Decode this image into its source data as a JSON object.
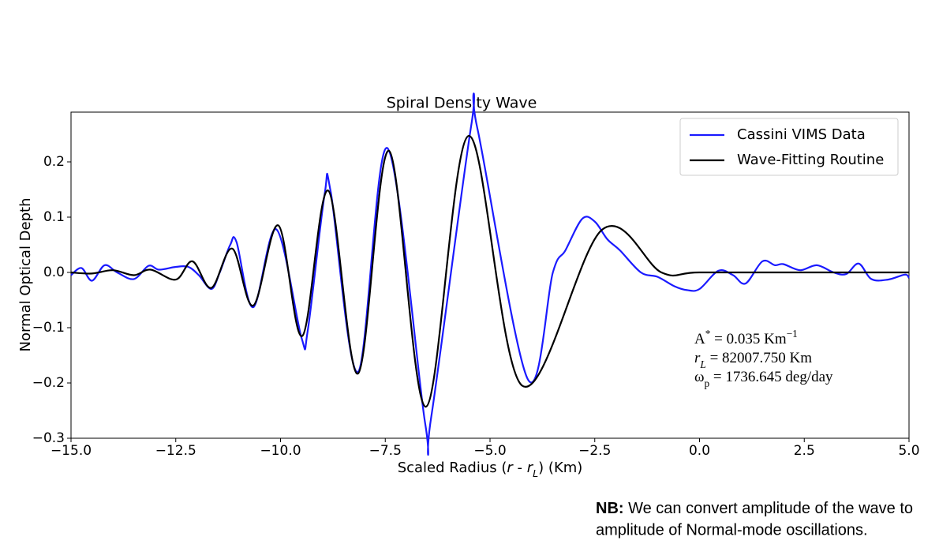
{
  "chart_data": {
    "type": "line",
    "title": "Spiral Density Wave",
    "xlabel": [
      {
        "text": "Scaled Radius ("
      },
      {
        "text": "r",
        "italic": true
      },
      {
        "text": " - "
      },
      {
        "text": "r",
        "italic": true
      },
      {
        "text": "L",
        "italic": true,
        "sub": true
      },
      {
        "text": ") (Km)"
      }
    ],
    "ylabel": "Normal Optical Depth",
    "xlim": [
      -15,
      5
    ],
    "ylim": [
      -0.3,
      0.29
    ],
    "xticks": [
      {
        "value": -15,
        "label": "−15.0"
      },
      {
        "value": -12.5,
        "label": "−12.5"
      },
      {
        "value": -10,
        "label": "−10.0"
      },
      {
        "value": -7.5,
        "label": "−7.5"
      },
      {
        "value": -5,
        "label": "−5.0"
      },
      {
        "value": -2.5,
        "label": "−2.5"
      },
      {
        "value": 0,
        "label": "0.0"
      },
      {
        "value": 2.5,
        "label": "2.5"
      },
      {
        "value": 5,
        "label": "5.0"
      }
    ],
    "yticks": [
      {
        "value": -0.3,
        "label": "−0.3"
      },
      {
        "value": -0.2,
        "label": "−0.2"
      },
      {
        "value": -0.1,
        "label": "−0.1"
      },
      {
        "value": 0,
        "label": "0.0"
      },
      {
        "value": 0.1,
        "label": "0.1"
      },
      0.2
    ],
    "grid": false,
    "legend": "upper right",
    "series": [
      {
        "name": "Cassini VIMS Data",
        "color": "#1a1aff",
        "x": [
          -15,
          -14.75,
          -14.5,
          -14.2,
          -13.9,
          -13.5,
          -13.15,
          -12.9,
          -12.5,
          -12.2,
          -11.95,
          -11.65,
          -11.45,
          -11.2,
          -11.05,
          -10.65,
          -10.1,
          -9.5,
          -9.35,
          -8.95,
          -8.8,
          -8.15,
          -7.45,
          -6.55,
          -6.4,
          -5.45,
          -5.3,
          -4.1,
          -3.5,
          -3.2,
          -2.8,
          -2.5,
          -2.2,
          -1.9,
          -1.4,
          -1.0,
          -0.6,
          -0.3,
          0.0,
          0.45,
          0.8,
          1.1,
          1.5,
          1.8,
          2.0,
          2.4,
          2.8,
          3.2,
          3.5,
          3.8,
          4.1,
          4.5,
          4.9,
          5.0
        ],
        "values": [
          -0.005,
          0.008,
          -0.015,
          0.013,
          0.0,
          -0.012,
          0.012,
          0.005,
          0.01,
          0.01,
          -0.005,
          -0.03,
          0.0,
          0.05,
          0.055,
          -0.063,
          0.078,
          -0.118,
          -0.105,
          0.14,
          0.145,
          -0.18,
          0.225,
          -0.272,
          -0.26,
          0.265,
          0.26,
          -0.193,
          0.0,
          0.04,
          0.097,
          0.092,
          0.06,
          0.04,
          0.0,
          -0.008,
          -0.025,
          -0.032,
          -0.03,
          0.003,
          -0.005,
          -0.02,
          0.02,
          0.013,
          0.015,
          0.004,
          0.013,
          0.0,
          -0.003,
          0.016,
          -0.012,
          -0.013,
          -0.004,
          -0.01
        ]
      },
      {
        "name": "Wave-Fitting Routine",
        "color": "#000000",
        "x": [
          -15,
          -14.5,
          -14.0,
          -13.5,
          -13.1,
          -12.5,
          -12.1,
          -11.65,
          -11.15,
          -10.65,
          -10.05,
          -9.48,
          -8.86,
          -8.15,
          -7.41,
          -6.53,
          -5.51,
          -4.23,
          -2.33,
          -0.91,
          0.0,
          2.5,
          5.0
        ],
        "values": [
          0.0,
          -0.002,
          0.004,
          -0.005,
          0.005,
          -0.013,
          0.02,
          -0.028,
          0.043,
          -0.06,
          0.085,
          -0.115,
          0.148,
          -0.183,
          0.22,
          -0.243,
          0.247,
          -0.205,
          0.077,
          0.0,
          0.0,
          0.0,
          0.0
        ]
      }
    ],
    "annotations": [
      [
        {
          "text": "A"
        },
        {
          "text": "*",
          "sup": true
        },
        {
          "text": " = 0.035 Km"
        },
        {
          "text": "−1",
          "sup": true
        }
      ],
      [
        {
          "text": "r",
          "italic": true
        },
        {
          "text": "L",
          "italic": true,
          "sub": true
        },
        {
          "text": "  =  82007.750 Km"
        }
      ],
      [
        {
          "text": "ω"
        },
        {
          "text": "p",
          "sub": true
        },
        {
          "text": "  =  1736.645 deg/day"
        }
      ]
    ]
  },
  "note": {
    "bold": "NB:",
    "lines": [
      " We can convert amplitude of the wave to",
      "amplitude of Normal-mode oscillations."
    ]
  }
}
